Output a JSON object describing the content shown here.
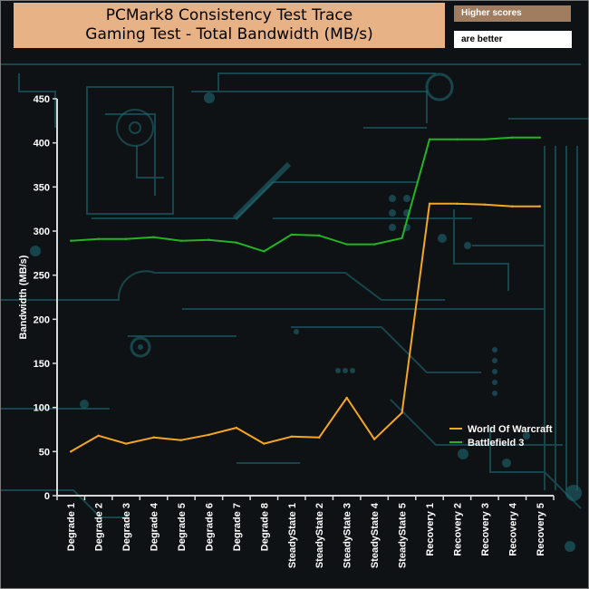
{
  "header": {
    "title_line1": "PCMark8 Consistency Test Trace",
    "title_line2": "Gaming Test - Total Bandwidth (MB/s)",
    "note_line1": "Higher scores",
    "note_line2": "are better"
  },
  "colors": {
    "background": "#0f1214",
    "circuit": "#1f6f78",
    "title_bg": "#e7b285",
    "note_bg": "#a07d5e",
    "axis": "#d9d9d9"
  },
  "chart_data": {
    "type": "line",
    "ylabel": "Bandwidth (MB/s)",
    "xlabel": "",
    "ylim": [
      0,
      450
    ],
    "yticks": [
      0,
      50,
      100,
      150,
      200,
      250,
      300,
      350,
      400,
      450
    ],
    "grid": false,
    "legend_position": "bottom-right",
    "categories": [
      "Degrade 1",
      "Degrade 2",
      "Degrade 3",
      "Degrade 4",
      "Degrade 5",
      "Degrade 6",
      "Degrade 7",
      "Degrade 8",
      "SteadyState 1",
      "SteadyState 2",
      "SteadyState 3",
      "SteadyState 4",
      "SteadyState 5",
      "Recovery 1",
      "Recovery 2",
      "Recovery 3",
      "Recovery 4",
      "Recovery 5"
    ],
    "series": [
      {
        "name": "World Of Warcraft",
        "color": "#f5a623",
        "values": [
          50,
          68,
          59,
          66,
          63,
          69,
          77,
          59,
          67,
          66,
          111,
          64,
          94,
          331,
          331,
          330,
          328,
          328
        ]
      },
      {
        "name": "Battlefield 3",
        "color": "#22b422",
        "values": [
          289,
          291,
          291,
          293,
          289,
          290,
          287,
          277,
          296,
          295,
          285,
          285,
          292,
          404,
          404,
          404,
          406,
          406
        ]
      }
    ]
  }
}
